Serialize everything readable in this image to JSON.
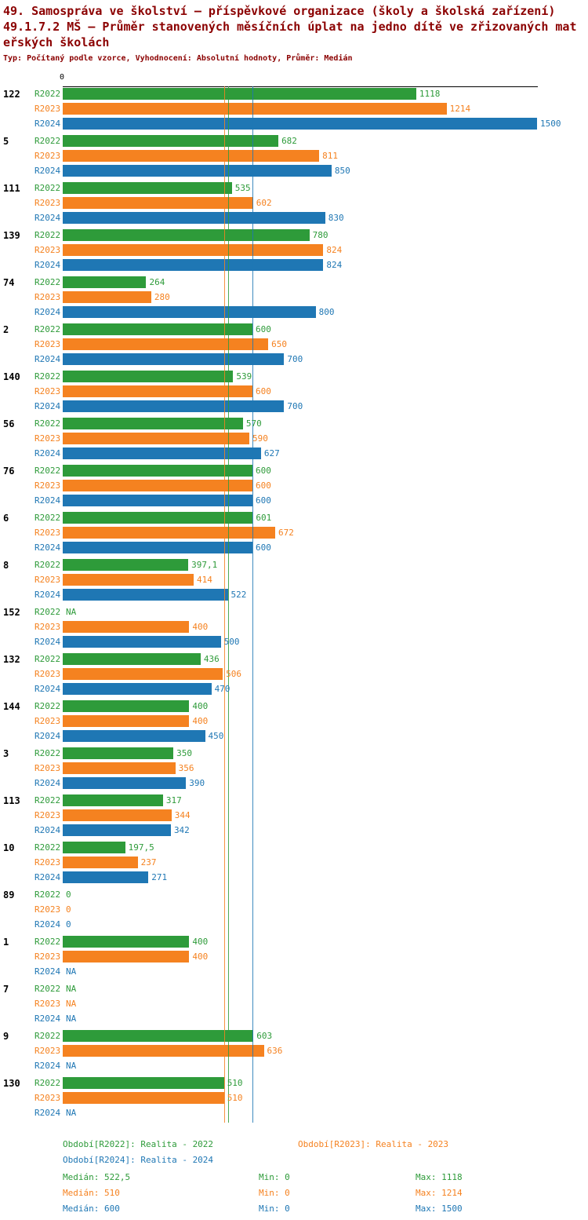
{
  "header": {
    "line1": "49. Samospráva ve školství – příspěvkové organizace (školy a školská zařízení)",
    "line2": "49.1.7.2 MŠ – Průměr stanovených měsíčních úplat na jedno dítě ve zřizovaných mateřských školách",
    "subtitle": "Typ: Počítaný podle vzorce, Vyhodnocení: Absolutní hodnoty, Průměr: Medián"
  },
  "chart_data": {
    "type": "bar",
    "orientation": "horizontal",
    "title": "49.1.7.2 MŠ – Průměr stanovených měsíčních úplat na jedno dítě ve zřizovaných mateřských školách",
    "x_axis": {
      "min": 0,
      "max": 1500,
      "origin_tick_label": "0"
    },
    "grid": false,
    "legend_position": "bottom",
    "series_meta": [
      {
        "key": "R2022",
        "legend_label": "Období[R2022]: Realita - 2022",
        "color": "#2e9b3a",
        "median": 522.5,
        "stats": {
          "median": "Medián: 522,5",
          "min": "Min: 0",
          "max": "Max: 1118"
        }
      },
      {
        "key": "R2023",
        "legend_label": "Období[R2023]: Realita - 2023",
        "color": "#f58220",
        "median": 510,
        "stats": {
          "median": "Medián: 510",
          "min": "Min: 0",
          "max": "Max: 1214"
        }
      },
      {
        "key": "R2024",
        "legend_label": "Období[R2024]: Realita - 2024",
        "color": "#1f77b4",
        "median": 600,
        "stats": {
          "median": "Medián: 600",
          "min": "Min: 0",
          "max": "Max: 1500"
        }
      }
    ],
    "groups": [
      {
        "id": "122",
        "bars": [
          {
            "series": "R2022",
            "value": 1118,
            "label": "1118"
          },
          {
            "series": "R2023",
            "value": 1214,
            "label": "1214"
          },
          {
            "series": "R2024",
            "value": 1500,
            "label": "1500"
          }
        ]
      },
      {
        "id": "5",
        "bars": [
          {
            "series": "R2022",
            "value": 682,
            "label": "682"
          },
          {
            "series": "R2023",
            "value": 811,
            "label": "811"
          },
          {
            "series": "R2024",
            "value": 850,
            "label": "850"
          }
        ]
      },
      {
        "id": "111",
        "bars": [
          {
            "series": "R2022",
            "value": 535,
            "label": "535"
          },
          {
            "series": "R2023",
            "value": 602,
            "label": "602"
          },
          {
            "series": "R2024",
            "value": 830,
            "label": "830"
          }
        ]
      },
      {
        "id": "139",
        "bars": [
          {
            "series": "R2022",
            "value": 780,
            "label": "780"
          },
          {
            "series": "R2023",
            "value": 824,
            "label": "824"
          },
          {
            "series": "R2024",
            "value": 824,
            "label": "824"
          }
        ]
      },
      {
        "id": "74",
        "bars": [
          {
            "series": "R2022",
            "value": 264,
            "label": "264"
          },
          {
            "series": "R2023",
            "value": 280,
            "label": "280"
          },
          {
            "series": "R2024",
            "value": 800,
            "label": "800"
          }
        ]
      },
      {
        "id": "2",
        "bars": [
          {
            "series": "R2022",
            "value": 600,
            "label": "600"
          },
          {
            "series": "R2023",
            "value": 650,
            "label": "650"
          },
          {
            "series": "R2024",
            "value": 700,
            "label": "700"
          }
        ]
      },
      {
        "id": "140",
        "bars": [
          {
            "series": "R2022",
            "value": 539,
            "label": "539"
          },
          {
            "series": "R2023",
            "value": 600,
            "label": "600"
          },
          {
            "series": "R2024",
            "value": 700,
            "label": "700"
          }
        ]
      },
      {
        "id": "56",
        "bars": [
          {
            "series": "R2022",
            "value": 570,
            "label": "570"
          },
          {
            "series": "R2023",
            "value": 590,
            "label": "590"
          },
          {
            "series": "R2024",
            "value": 627,
            "label": "627"
          }
        ]
      },
      {
        "id": "76",
        "bars": [
          {
            "series": "R2022",
            "value": 600,
            "label": "600"
          },
          {
            "series": "R2023",
            "value": 600,
            "label": "600"
          },
          {
            "series": "R2024",
            "value": 600,
            "label": "600"
          }
        ]
      },
      {
        "id": "6",
        "bars": [
          {
            "series": "R2022",
            "value": 601,
            "label": "601"
          },
          {
            "series": "R2023",
            "value": 672,
            "label": "672"
          },
          {
            "series": "R2024",
            "value": 600,
            "label": "600"
          }
        ]
      },
      {
        "id": "8",
        "bars": [
          {
            "series": "R2022",
            "value": 397.1,
            "label": "397,1"
          },
          {
            "series": "R2023",
            "value": 414,
            "label": "414"
          },
          {
            "series": "R2024",
            "value": 522,
            "label": "522"
          }
        ]
      },
      {
        "id": "152",
        "bars": [
          {
            "series": "R2022",
            "value": null,
            "label": "NA"
          },
          {
            "series": "R2023",
            "value": 400,
            "label": "400"
          },
          {
            "series": "R2024",
            "value": 500,
            "label": "500"
          }
        ]
      },
      {
        "id": "132",
        "bars": [
          {
            "series": "R2022",
            "value": 436,
            "label": "436"
          },
          {
            "series": "R2023",
            "value": 506,
            "label": "506"
          },
          {
            "series": "R2024",
            "value": 470,
            "label": "470"
          }
        ]
      },
      {
        "id": "144",
        "bars": [
          {
            "series": "R2022",
            "value": 400,
            "label": "400"
          },
          {
            "series": "R2023",
            "value": 400,
            "label": "400"
          },
          {
            "series": "R2024",
            "value": 450,
            "label": "450"
          }
        ]
      },
      {
        "id": "3",
        "bars": [
          {
            "series": "R2022",
            "value": 350,
            "label": "350"
          },
          {
            "series": "R2023",
            "value": 356,
            "label": "356"
          },
          {
            "series": "R2024",
            "value": 390,
            "label": "390"
          }
        ]
      },
      {
        "id": "113",
        "bars": [
          {
            "series": "R2022",
            "value": 317,
            "label": "317"
          },
          {
            "series": "R2023",
            "value": 344,
            "label": "344"
          },
          {
            "series": "R2024",
            "value": 342,
            "label": "342"
          }
        ]
      },
      {
        "id": "10",
        "bars": [
          {
            "series": "R2022",
            "value": 197.5,
            "label": "197,5"
          },
          {
            "series": "R2023",
            "value": 237,
            "label": "237"
          },
          {
            "series": "R2024",
            "value": 271,
            "label": "271"
          }
        ]
      },
      {
        "id": "89",
        "bars": [
          {
            "series": "R2022",
            "value": 0,
            "label": "0"
          },
          {
            "series": "R2023",
            "value": 0,
            "label": "0"
          },
          {
            "series": "R2024",
            "value": 0,
            "label": "0"
          }
        ]
      },
      {
        "id": "1",
        "bars": [
          {
            "series": "R2022",
            "value": 400,
            "label": "400"
          },
          {
            "series": "R2023",
            "value": 400,
            "label": "400"
          },
          {
            "series": "R2024",
            "value": null,
            "label": "NA"
          }
        ]
      },
      {
        "id": "7",
        "bars": [
          {
            "series": "R2022",
            "value": null,
            "label": "NA"
          },
          {
            "series": "R2023",
            "value": null,
            "label": "NA"
          },
          {
            "series": "R2024",
            "value": null,
            "label": "NA"
          }
        ]
      },
      {
        "id": "9",
        "bars": [
          {
            "series": "R2022",
            "value": 603,
            "label": "603"
          },
          {
            "series": "R2023",
            "value": 636,
            "label": "636"
          },
          {
            "series": "R2024",
            "value": null,
            "label": "NA"
          }
        ]
      },
      {
        "id": "130",
        "bars": [
          {
            "series": "R2022",
            "value": 510,
            "label": "510"
          },
          {
            "series": "R2023",
            "value": 510,
            "label": "510"
          },
          {
            "series": "R2024",
            "value": null,
            "label": "NA"
          }
        ]
      }
    ]
  }
}
